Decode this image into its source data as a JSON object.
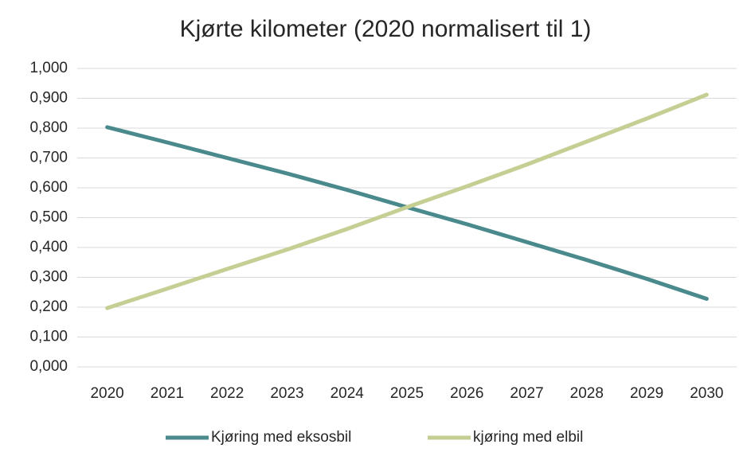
{
  "chart_data": {
    "type": "line",
    "title": "Kjørte kilometer (2020 normalisert til 1)",
    "categories": [
      "2020",
      "2021",
      "2022",
      "2023",
      "2024",
      "2025",
      "2026",
      "2027",
      "2028",
      "2029",
      "2030"
    ],
    "series": [
      {
        "name": "Kjøring med eksosbil",
        "color": "#4a8a8c",
        "values": [
          0.803,
          0.752,
          0.7,
          0.648,
          0.593,
          0.535,
          0.478,
          0.418,
          0.358,
          0.295,
          0.228
        ]
      },
      {
        "name": "kjøring med elbil",
        "color": "#c5cf94",
        "values": [
          0.197,
          0.262,
          0.328,
          0.393,
          0.462,
          0.535,
          0.605,
          0.678,
          0.755,
          0.832,
          0.912
        ]
      }
    ],
    "ylim": [
      0,
      1
    ],
    "yticks": [
      {
        "value": 0,
        "label": "0,000"
      },
      {
        "value": 0.1,
        "label": "0,100"
      },
      {
        "value": 0.2,
        "label": "0,200"
      },
      {
        "value": 0.3,
        "label": "0,300"
      },
      {
        "value": 0.4,
        "label": "0,400"
      },
      {
        "value": 0.5,
        "label": "0,500"
      },
      {
        "value": 0.6,
        "label": "0,600"
      },
      {
        "value": 0.7,
        "label": "0,700"
      },
      {
        "value": 0.8,
        "label": "0,800"
      },
      {
        "value": 0.9,
        "label": "0,900"
      },
      {
        "value": 1,
        "label": "1,000"
      }
    ],
    "grid": true,
    "legend": "bottom"
  }
}
